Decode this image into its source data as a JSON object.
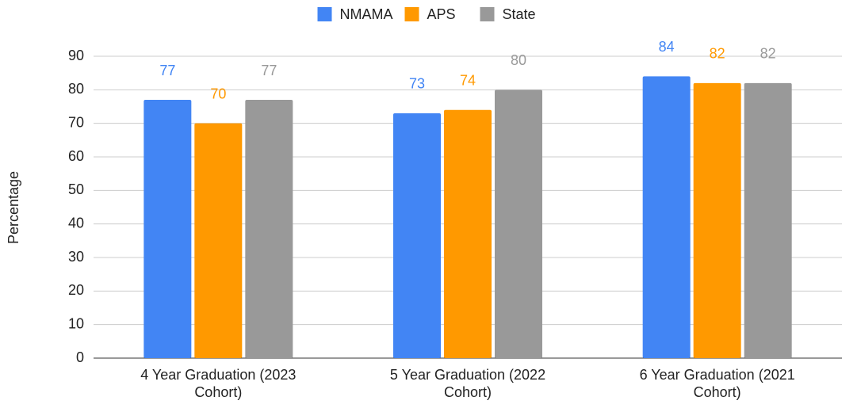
{
  "chart_data": {
    "type": "bar",
    "y_label": "Percentage",
    "categories": [
      "4 Year Graduation (2023 Cohort)",
      "5 Year Graduation (2022 Cohort)",
      "6 Year Graduation (2021 Cohort)"
    ],
    "series": [
      {
        "name": "NMAMA",
        "color": "#4285f4",
        "values": [
          77,
          73,
          84
        ]
      },
      {
        "name": "APS",
        "color": "#ff9900",
        "values": [
          70,
          74,
          82
        ]
      },
      {
        "name": "State",
        "color": "#999999",
        "values": [
          77,
          80,
          82
        ]
      }
    ],
    "ylim": [
      0,
      90
    ],
    "yticks": [
      0,
      10,
      20,
      30,
      40,
      50,
      60,
      70,
      80,
      90
    ],
    "grid": true,
    "legend": "top"
  }
}
